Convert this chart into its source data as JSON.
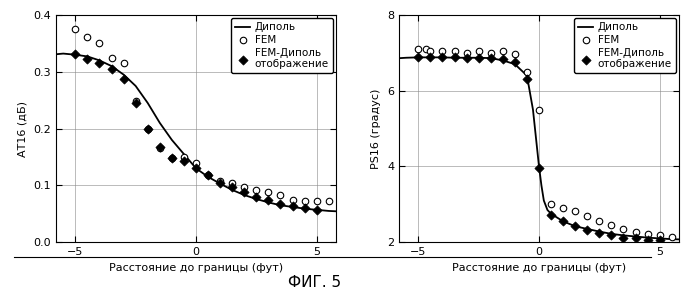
{
  "fig_width": 7.0,
  "fig_height": 2.99,
  "dpi": 100,
  "caption": "ФИГ. 5",
  "caption_fontsize": 11,
  "left_plot": {
    "ylabel": "АТ16 (дБ)",
    "xlabel": "Расстояние до границы (фут)",
    "xlim": [
      -5.8,
      5.8
    ],
    "ylim": [
      0,
      0.4
    ],
    "yticks": [
      0,
      0.1,
      0.2,
      0.3,
      0.4
    ],
    "xticks": [
      -5,
      0,
      5
    ],
    "dipole_x": [
      -6,
      -5.5,
      -5,
      -4.5,
      -4,
      -3.5,
      -3,
      -2.5,
      -2,
      -1.5,
      -1,
      -0.5,
      0,
      0.5,
      1,
      1.5,
      2,
      2.5,
      3,
      3.5,
      4,
      4.5,
      5,
      5.5,
      6
    ],
    "dipole_y": [
      0.33,
      0.332,
      0.33,
      0.327,
      0.32,
      0.31,
      0.295,
      0.275,
      0.245,
      0.21,
      0.18,
      0.155,
      0.13,
      0.115,
      0.103,
      0.092,
      0.083,
      0.076,
      0.07,
      0.065,
      0.062,
      0.059,
      0.057,
      0.055,
      0.054
    ],
    "fem_x": [
      -5.0,
      -4.5,
      -4.0,
      -3.5,
      -3.0,
      -2.5,
      -2.0,
      -1.5,
      -1.0,
      -0.5,
      0.0,
      0.5,
      1.0,
      1.5,
      2.0,
      2.5,
      3.0,
      3.5,
      4.0,
      4.5,
      5.0,
      5.5
    ],
    "fem_y": [
      0.375,
      0.362,
      0.35,
      0.325,
      0.315,
      0.248,
      0.2,
      0.165,
      0.148,
      0.15,
      0.14,
      0.118,
      0.108,
      0.105,
      0.098,
      0.092,
      0.088,
      0.083,
      0.075,
      0.073,
      0.073,
      0.073
    ],
    "fem_dipole_x": [
      -5.0,
      -4.5,
      -4.0,
      -3.5,
      -3.0,
      -2.5,
      -2.0,
      -1.5,
      -1.0,
      -0.5,
      0.0,
      0.5,
      1.0,
      1.5,
      2.0,
      2.5,
      3.0,
      3.5,
      4.0,
      4.5,
      5.0
    ],
    "fem_dipole_y": [
      0.332,
      0.323,
      0.315,
      0.305,
      0.287,
      0.245,
      0.2,
      0.168,
      0.148,
      0.143,
      0.13,
      0.118,
      0.105,
      0.097,
      0.088,
      0.08,
      0.074,
      0.068,
      0.063,
      0.06,
      0.057
    ]
  },
  "right_plot": {
    "ylabel": "PS16 (градус)",
    "xlabel": "Расстояние до границы (фут)",
    "xlim": [
      -5.8,
      5.8
    ],
    "ylim": [
      2,
      8
    ],
    "yticks": [
      2,
      4,
      6,
      8
    ],
    "xticks": [
      -5,
      0,
      5
    ],
    "dipole_x": [
      -6,
      -5.5,
      -5,
      -4.5,
      -4,
      -3.5,
      -3,
      -2.5,
      -2,
      -1.5,
      -1,
      -0.5,
      -0.25,
      0,
      0.1,
      0.2,
      0.35,
      0.5,
      1,
      1.5,
      2,
      2.5,
      3,
      3.5,
      4,
      4.5,
      5,
      5.5,
      6
    ],
    "dipole_y": [
      6.85,
      6.87,
      6.88,
      6.88,
      6.88,
      6.87,
      6.87,
      6.87,
      6.86,
      6.8,
      6.7,
      6.4,
      5.5,
      4.0,
      3.5,
      3.1,
      2.85,
      2.75,
      2.55,
      2.42,
      2.35,
      2.28,
      2.22,
      2.18,
      2.15,
      2.12,
      2.1,
      2.08,
      2.07
    ],
    "fem_x": [
      -5.0,
      -4.7,
      -4.5,
      -4.0,
      -3.5,
      -3.0,
      -2.5,
      -2.0,
      -1.5,
      -1.0,
      -0.5,
      0.0,
      0.5,
      1.0,
      1.5,
      2.0,
      2.5,
      3.0,
      3.5,
      4.0,
      4.5,
      5.0,
      5.5
    ],
    "fem_y": [
      7.1,
      7.1,
      7.05,
      7.05,
      7.05,
      7.0,
      7.05,
      7.0,
      7.05,
      6.98,
      6.5,
      5.5,
      3.0,
      2.9,
      2.82,
      2.7,
      2.55,
      2.45,
      2.35,
      2.28,
      2.22,
      2.18,
      2.15
    ],
    "fem_dipole_x": [
      -5.0,
      -4.5,
      -4.0,
      -3.5,
      -3.0,
      -2.5,
      -2.0,
      -1.5,
      -1.0,
      -0.5,
      0.0,
      0.5,
      1.0,
      1.5,
      2.0,
      2.5,
      3.0,
      3.5,
      4.0,
      4.5,
      5.0
    ],
    "fem_dipole_y": [
      6.88,
      6.88,
      6.88,
      6.88,
      6.87,
      6.87,
      6.87,
      6.85,
      6.75,
      6.3,
      3.97,
      2.72,
      2.55,
      2.42,
      2.32,
      2.25,
      2.18,
      2.12,
      2.1,
      2.07,
      2.05
    ]
  },
  "legend_labels": [
    "Диполь",
    "FEM",
    "FEM-Диполь\nотображение"
  ],
  "bg_color": "#ffffff",
  "grid_color": "#888888",
  "ylabel_fontsize": 8,
  "xlabel_fontsize": 8,
  "tick_fontsize": 8,
  "legend_fontsize": 7.5
}
